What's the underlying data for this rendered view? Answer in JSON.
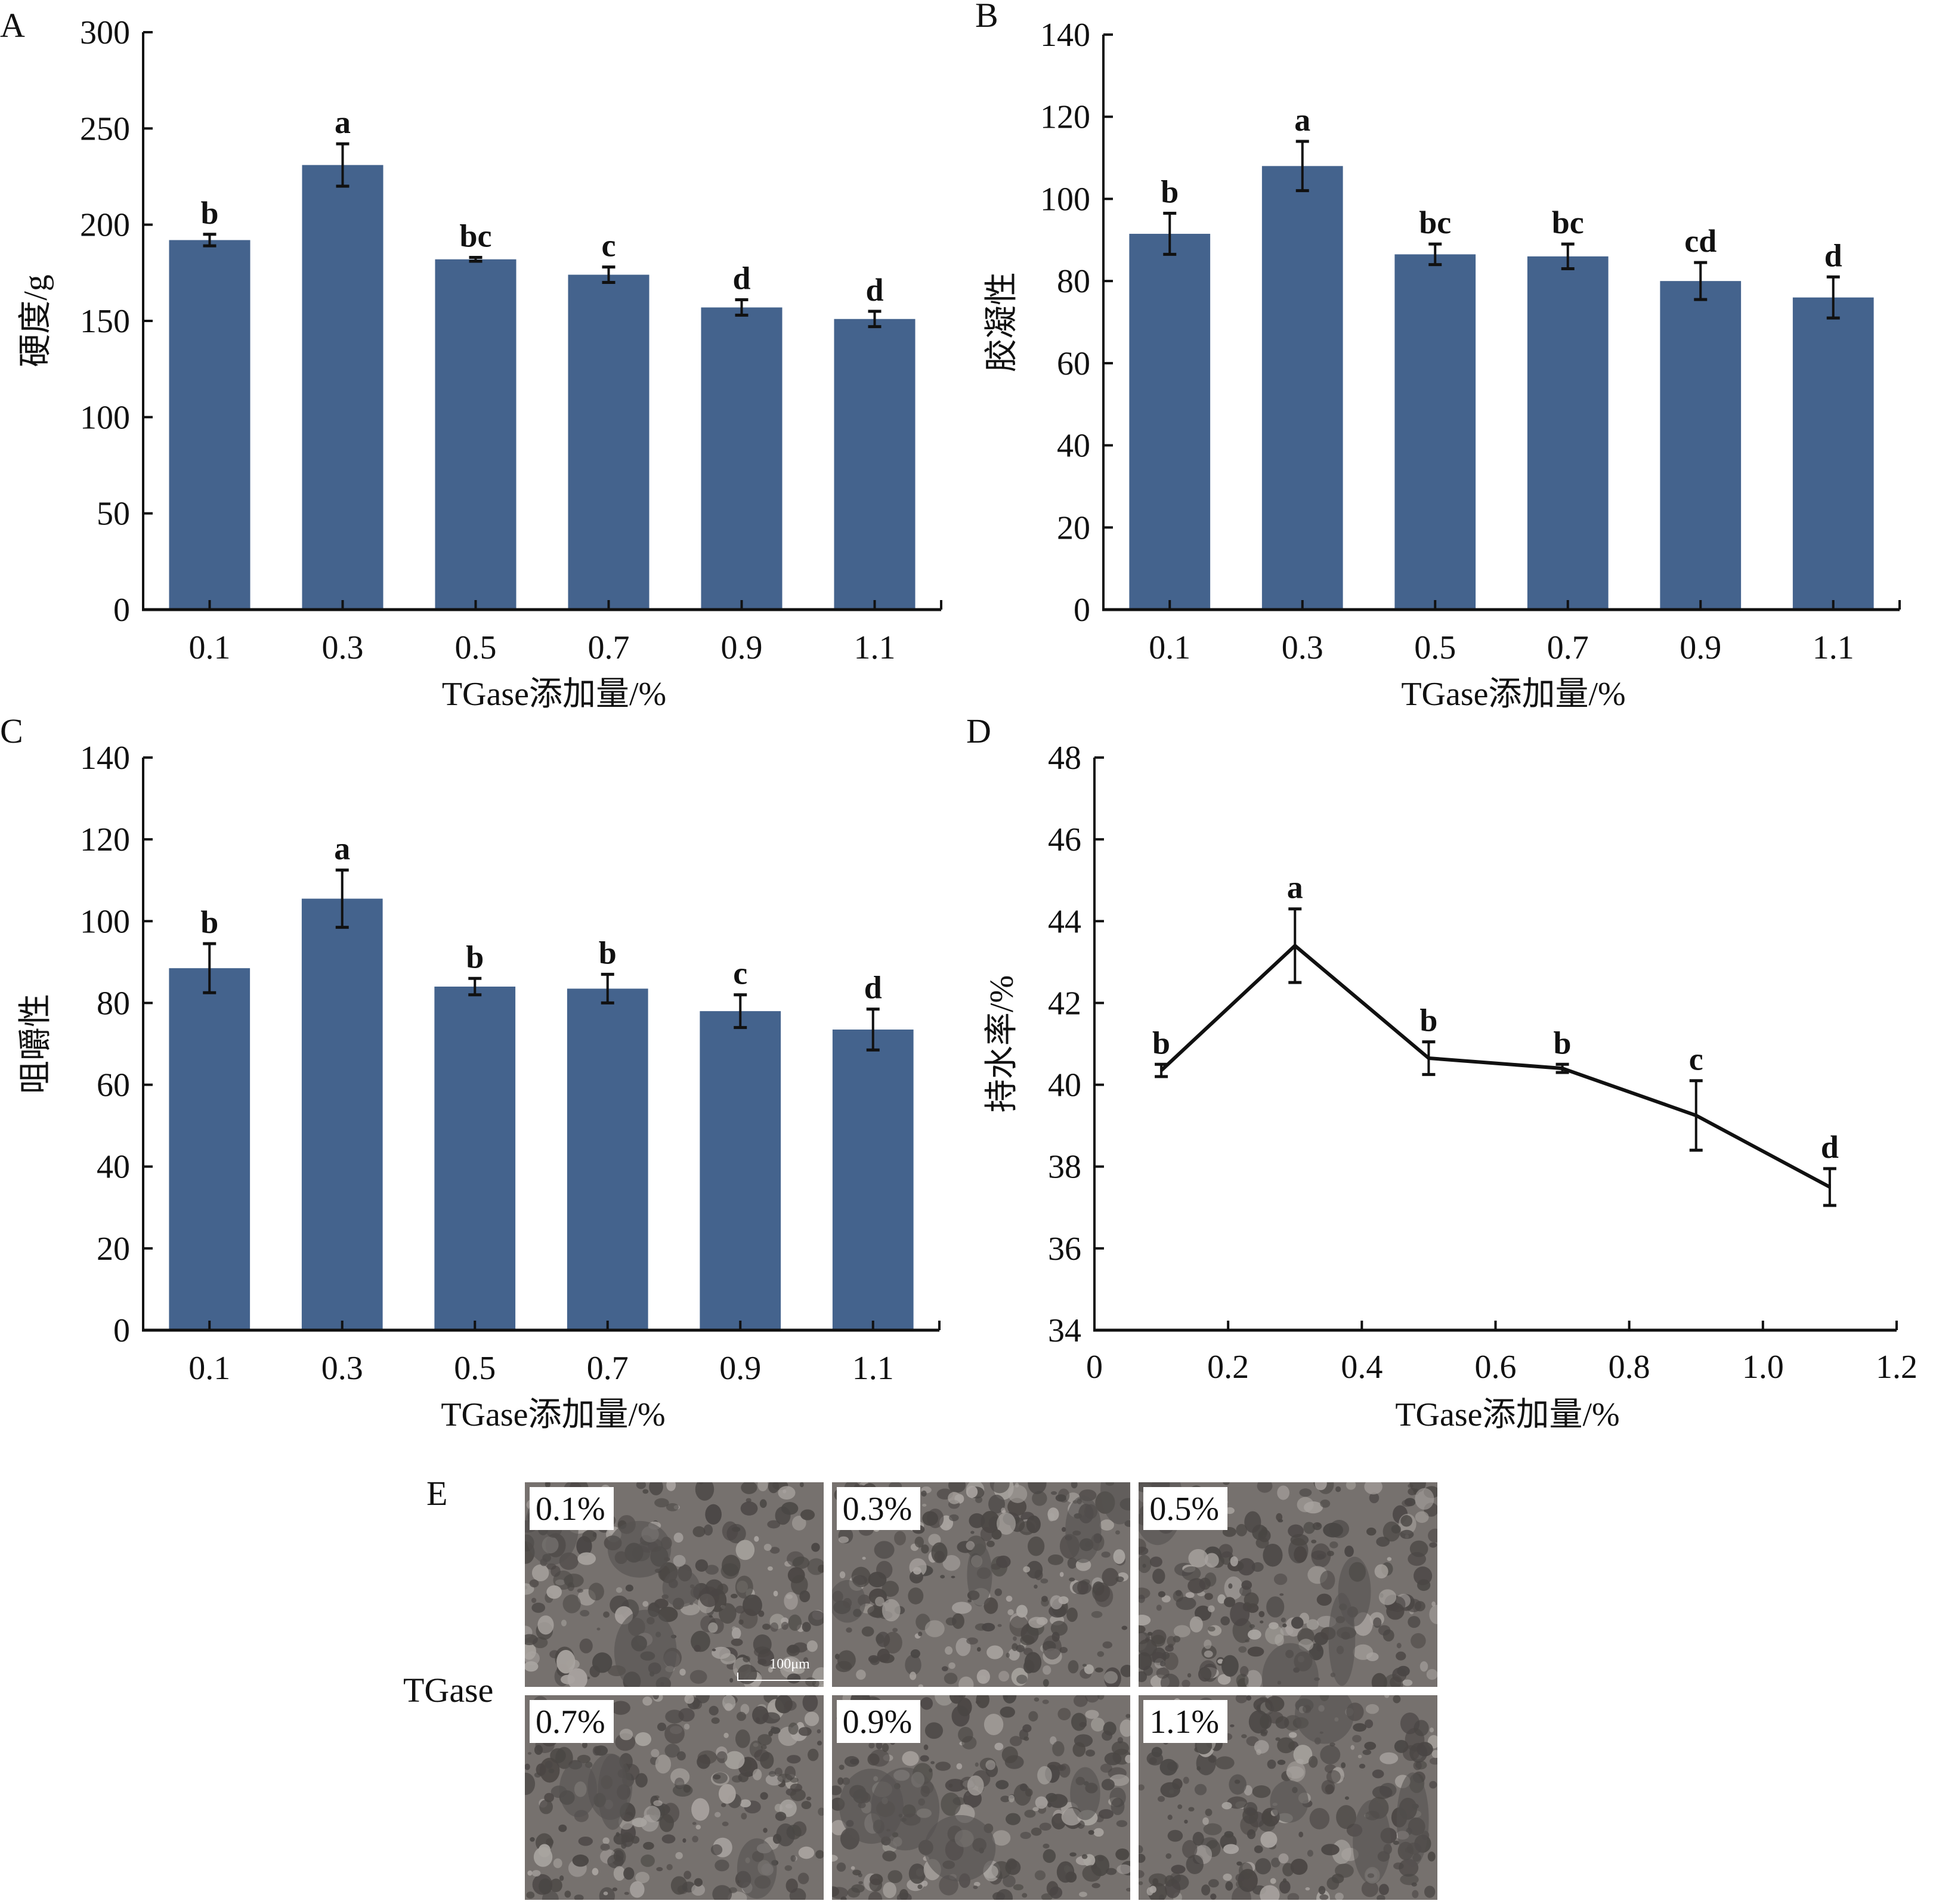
{
  "colors": {
    "bar": "#44638d",
    "axis": "#111111",
    "line": "#111111"
  },
  "chart_data": [
    {
      "panel": "A",
      "type": "bar",
      "title": "",
      "xlabel": "TGase添加量/%",
      "ylabel": "硬度/g",
      "categories": [
        "0.1",
        "0.3",
        "0.5",
        "0.7",
        "0.9",
        "1.1"
      ],
      "values": [
        192,
        231,
        182,
        174,
        157,
        151
      ],
      "errors": [
        3,
        11,
        1,
        4,
        4,
        4
      ],
      "significance": [
        "b",
        "a",
        "bc",
        "c",
        "d",
        "d"
      ],
      "ylim": [
        0,
        300
      ],
      "yticks": [
        0,
        50,
        100,
        150,
        200,
        250,
        300
      ],
      "grid": false
    },
    {
      "panel": "B",
      "type": "bar",
      "title": "",
      "xlabel": "TGase添加量/%",
      "ylabel": "胶凝性",
      "categories": [
        "0.1",
        "0.3",
        "0.5",
        "0.7",
        "0.9",
        "1.1"
      ],
      "values": [
        91.5,
        108,
        86.5,
        86,
        80,
        76
      ],
      "errors": [
        5,
        6,
        2.5,
        3,
        4.5,
        5
      ],
      "significance": [
        "b",
        "a",
        "bc",
        "bc",
        "cd",
        "d"
      ],
      "ylim": [
        0,
        140
      ],
      "yticks": [
        0,
        20,
        40,
        60,
        80,
        100,
        120,
        140
      ],
      "grid": false
    },
    {
      "panel": "C",
      "type": "bar",
      "title": "",
      "xlabel": "TGase添加量/%",
      "ylabel": "咀嚼性",
      "categories": [
        "0.1",
        "0.3",
        "0.5",
        "0.7",
        "0.9",
        "1.1"
      ],
      "values": [
        88.5,
        105.5,
        84,
        83.5,
        78,
        73.5
      ],
      "errors": [
        6,
        7,
        2,
        3.5,
        4,
        5
      ],
      "significance": [
        "b",
        "a",
        "b",
        "b",
        "c",
        "d"
      ],
      "ylim": [
        0,
        140
      ],
      "yticks": [
        0,
        20,
        40,
        60,
        80,
        100,
        120,
        140
      ],
      "grid": false
    },
    {
      "panel": "D",
      "type": "line",
      "title": "",
      "xlabel": "TGase添加量/%",
      "ylabel": "持水率/%",
      "x": [
        0.1,
        0.3,
        0.5,
        0.7,
        0.9,
        1.1
      ],
      "values": [
        40.35,
        43.4,
        40.65,
        40.4,
        39.25,
        37.5
      ],
      "errors": [
        0.15,
        0.9,
        0.4,
        0.1,
        0.85,
        0.45
      ],
      "significance": [
        "b",
        "a",
        "b",
        "b",
        "c",
        "d"
      ],
      "xlim": [
        0,
        1.2
      ],
      "xticks": [
        "0",
        "0.2",
        "0.4",
        "0.6",
        "0.8",
        "1.0",
        "1.2"
      ],
      "ylim": [
        34,
        48
      ],
      "yticks": [
        34,
        36,
        38,
        40,
        42,
        44,
        46,
        48
      ],
      "grid": false
    }
  ],
  "sem": {
    "panel_label": "E",
    "row_label": "TGase",
    "images": [
      {
        "label": "0.1%",
        "scale_bar": "100μm"
      },
      {
        "label": "0.3%"
      },
      {
        "label": "0.5%"
      },
      {
        "label": "0.7%"
      },
      {
        "label": "0.9%"
      },
      {
        "label": "1.1%"
      }
    ]
  }
}
